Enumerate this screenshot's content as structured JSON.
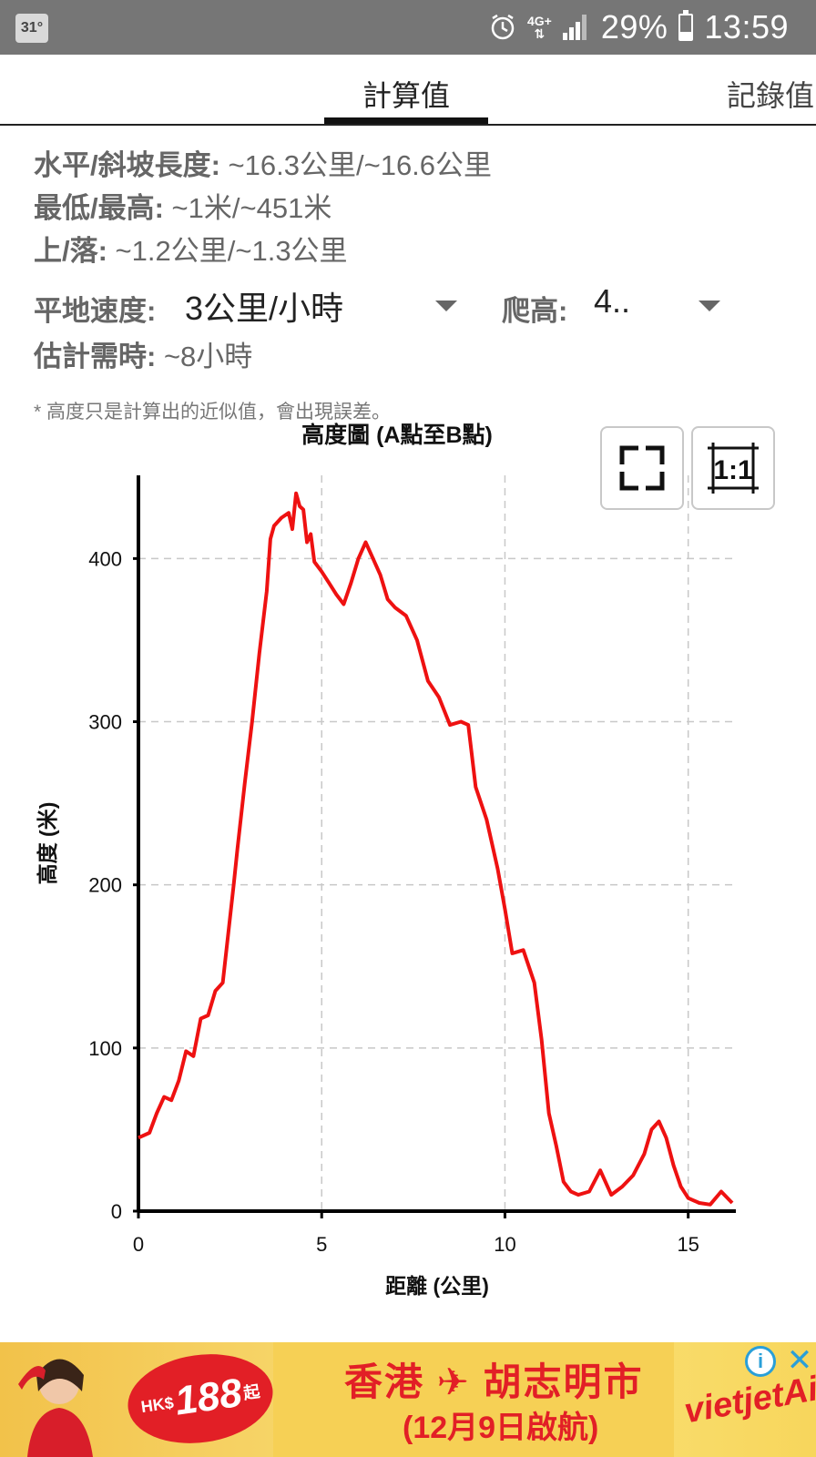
{
  "status_bar": {
    "temperature": "31°",
    "network": "4G+",
    "battery": "29%",
    "time": "13:59"
  },
  "tabs": [
    {
      "label": "計算值",
      "active": true
    },
    {
      "label": "記錄值",
      "active": false
    }
  ],
  "info": {
    "length_label": "水平/斜坡長度:",
    "length_value": " ~16.3公里/~16.6公里",
    "minmax_label": "最低/最高:",
    "minmax_value": " ~1米/~451米",
    "updown_label": "上/落:",
    "updown_value": " ~1.2公里/~1.3公里",
    "speed_label": "平地速度:",
    "speed_value": "3公里/小時",
    "climb_label": "爬高:",
    "climb_value": "4..",
    "time_label": "估計需時:",
    "time_value": " ~8小時",
    "note": "* 高度只是計算出的近似值，會出現誤差。"
  },
  "chart_data": {
    "type": "line",
    "title": "高度圖 (A點至B點)",
    "xlabel": "距離 (公里)",
    "ylabel": "高度 (米)",
    "xlim": [
      0,
      16.3
    ],
    "ylim": [
      0,
      451
    ],
    "xticks": [
      0,
      5,
      10,
      15
    ],
    "yticks": [
      0,
      100,
      200,
      300,
      400
    ],
    "grid": true,
    "series": [
      {
        "color": "#ee1111",
        "x": [
          0,
          0.3,
          0.5,
          0.7,
          0.9,
          1.1,
          1.3,
          1.5,
          1.7,
          1.9,
          2.1,
          2.3,
          2.5,
          2.6,
          2.7,
          2.9,
          3.1,
          3.3,
          3.5,
          3.6,
          3.7,
          3.9,
          4.1,
          4.2,
          4.3,
          4.4,
          4.5,
          4.6,
          4.7,
          4.8,
          5.0,
          5.2,
          5.4,
          5.6,
          5.8,
          6.0,
          6.2,
          6.4,
          6.6,
          6.8,
          7.0,
          7.3,
          7.6,
          7.9,
          8.2,
          8.5,
          8.8,
          9.0,
          9.2,
          9.5,
          9.8,
          10.0,
          10.2,
          10.5,
          10.8,
          11.0,
          11.2,
          11.4,
          11.6,
          11.8,
          12.0,
          12.3,
          12.6,
          12.9,
          13.2,
          13.5,
          13.8,
          14.0,
          14.2,
          14.4,
          14.6,
          14.8,
          15.0,
          15.3,
          15.6,
          15.9,
          16.2
        ],
        "y": [
          45,
          48,
          60,
          70,
          68,
          80,
          98,
          95,
          118,
          120,
          135,
          140,
          180,
          200,
          222,
          262,
          300,
          342,
          380,
          412,
          420,
          425,
          428,
          418,
          440,
          432,
          430,
          410,
          415,
          398,
          392,
          385,
          378,
          372,
          385,
          400,
          410,
          400,
          390,
          375,
          370,
          365,
          350,
          325,
          315,
          298,
          300,
          298,
          260,
          240,
          210,
          185,
          158,
          160,
          140,
          105,
          60,
          40,
          18,
          12,
          10,
          12,
          25,
          10,
          15,
          22,
          35,
          50,
          55,
          45,
          28,
          15,
          8,
          5,
          4,
          12,
          5
        ]
      }
    ]
  },
  "chart_buttons": {
    "fullscreen_icon": "fullscreen-icon",
    "oneone_label": "1:1"
  },
  "ad": {
    "currency": "HK$",
    "price": "188",
    "price_suffix": "起",
    "title": "香港 ✈ 胡志明市",
    "subtitle": "(12月9日啟航)",
    "brand": "vietjetAir.com",
    "info_icon": "i",
    "close_icon": "✕"
  }
}
